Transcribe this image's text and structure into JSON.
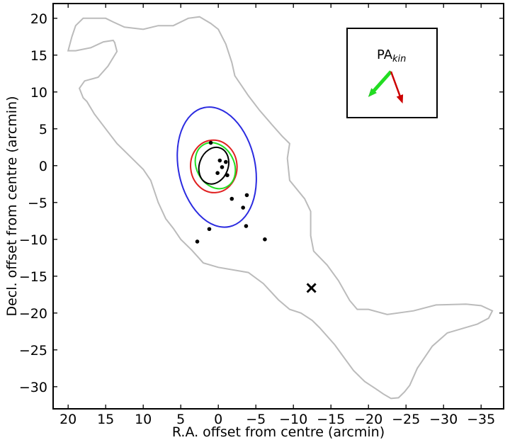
{
  "chart_data": {
    "type": "scatter",
    "xlabel": "R.A. offset from centre (arcmin)",
    "ylabel": "Decl. offset from centre (arcmin)",
    "xlim": [
      22,
      -38
    ],
    "ylim": [
      -33,
      22
    ],
    "xticks": [
      20,
      15,
      10,
      5,
      0,
      -5,
      -10,
      -15,
      -20,
      -25,
      -30,
      -35
    ],
    "yticks": [
      20,
      15,
      10,
      5,
      0,
      -5,
      -10,
      -15,
      -20,
      -25,
      -30
    ],
    "grid": false,
    "colors": {
      "outer_contour": "#bbbbbb",
      "blue_ellipse": "#2b2be0",
      "red_contour": "#e02020",
      "green_contour": "#22dd22",
      "black_contour": "#000000",
      "arrow_black": "#000000",
      "arrow_green": "#22dd22",
      "arrow_red": "#cc0000"
    },
    "points": [
      {
        "x": 1.0,
        "y": 3.1
      },
      {
        "x": -0.2,
        "y": 0.7
      },
      {
        "x": -1.0,
        "y": 0.5
      },
      {
        "x": -0.5,
        "y": -0.2
      },
      {
        "x": 0.1,
        "y": -1.0
      },
      {
        "x": -1.2,
        "y": -1.3
      },
      {
        "x": -1.8,
        "y": -4.5
      },
      {
        "x": -3.8,
        "y": -4.0
      },
      {
        "x": -3.3,
        "y": -5.7
      },
      {
        "x": -3.7,
        "y": -8.2
      },
      {
        "x": 1.2,
        "y": -8.6
      },
      {
        "x": 2.8,
        "y": -10.3
      },
      {
        "x": -6.2,
        "y": -10.0
      }
    ],
    "cross_marker": {
      "x": -12.4,
      "y": -16.6
    },
    "ellipses": [
      {
        "name": "blue",
        "cx": 0.2,
        "cy": -0.2,
        "a": 8.1,
        "b": 5.2,
        "angle_deg": 102
      },
      {
        "name": "red",
        "cx": 0.6,
        "cy": -0.1,
        "a": 3.5,
        "b": 3.15,
        "angle_deg": 95
      },
      {
        "name": "green",
        "cx": 0.4,
        "cy": 0.0,
        "a": 3.2,
        "b": 2.55,
        "angle_deg": 118
      },
      {
        "name": "black",
        "cx": 0.6,
        "cy": 0.0,
        "a": 2.5,
        "b": 1.95,
        "angle_deg": 70
      }
    ],
    "outer_contour": [
      [
        19,
        19
      ],
      [
        18,
        20
      ],
      [
        16,
        20
      ],
      [
        15,
        20
      ],
      [
        14,
        19.5
      ],
      [
        12.5,
        18.8
      ],
      [
        10,
        18.5
      ],
      [
        8,
        19
      ],
      [
        6,
        19
      ],
      [
        4,
        20
      ],
      [
        2.5,
        20.2
      ],
      [
        1,
        19.3
      ],
      [
        0,
        18.5
      ],
      [
        -1,
        16.5
      ],
      [
        -1.8,
        14
      ],
      [
        -2.2,
        12.2
      ],
      [
        -4,
        9.5
      ],
      [
        -5.5,
        7.5
      ],
      [
        -7.2,
        5.5
      ],
      [
        -8.5,
        4
      ],
      [
        -9.5,
        3
      ],
      [
        -9.2,
        1
      ],
      [
        -9.5,
        -2
      ],
      [
        -11.5,
        -4.5
      ],
      [
        -12.3,
        -6.2
      ],
      [
        -12.3,
        -9.5
      ],
      [
        -12.7,
        -11.6
      ],
      [
        -14.5,
        -13.5
      ],
      [
        -16,
        -15.6
      ],
      [
        -17.5,
        -18.3
      ],
      [
        -18.5,
        -19.5
      ],
      [
        -20,
        -19.5
      ],
      [
        -22.5,
        -20.2
      ],
      [
        -26,
        -19.7
      ],
      [
        -29,
        -18.9
      ],
      [
        -33,
        -18.8
      ],
      [
        -35,
        -19
      ],
      [
        -36.5,
        -19.7
      ],
      [
        -36,
        -20.7
      ],
      [
        -34.5,
        -21.5
      ],
      [
        -30.5,
        -22.7
      ],
      [
        -28.5,
        -24.5
      ],
      [
        -27.5,
        -26
      ],
      [
        -26.5,
        -27.5
      ],
      [
        -25.5,
        -29.8
      ],
      [
        -24.8,
        -30.7
      ],
      [
        -24,
        -31.5
      ],
      [
        -23,
        -31.6
      ],
      [
        -22,
        -31
      ],
      [
        -21,
        -30.3
      ],
      [
        -19.5,
        -29.3
      ],
      [
        -18,
        -27.8
      ],
      [
        -16.5,
        -25.7
      ],
      [
        -15.5,
        -24.3
      ],
      [
        -13.5,
        -22
      ],
      [
        -12.5,
        -21
      ],
      [
        -11,
        -20
      ],
      [
        -9.5,
        -19.5
      ],
      [
        -8,
        -18.2
      ],
      [
        -6,
        -16
      ],
      [
        -4,
        -14.5
      ],
      [
        0,
        -13.8
      ],
      [
        2,
        -13.2
      ],
      [
        3.5,
        -11.5
      ],
      [
        5,
        -10
      ],
      [
        6,
        -8.5
      ],
      [
        7,
        -7.2
      ],
      [
        8,
        -5
      ],
      [
        9,
        -2
      ],
      [
        10,
        -0.5
      ],
      [
        12,
        1.5
      ],
      [
        13.5,
        3
      ],
      [
        15,
        5
      ],
      [
        16.5,
        7
      ],
      [
        17.5,
        8.7
      ],
      [
        18,
        9.2
      ],
      [
        18.5,
        10.5
      ],
      [
        17.8,
        11.5
      ],
      [
        16,
        12
      ],
      [
        14.7,
        13.5
      ],
      [
        13.5,
        15.5
      ],
      [
        13.8,
        16.7
      ],
      [
        14,
        17
      ],
      [
        15.3,
        16.8
      ],
      [
        17,
        16
      ],
      [
        19,
        15.6
      ],
      [
        20,
        15.6
      ],
      [
        19.5,
        17.5
      ]
    ],
    "inset": {
      "label_base": "PA",
      "label_sub": "kin",
      "arrows": [
        {
          "name": "black",
          "dx": -0.85,
          "dy": 0.95
        },
        {
          "name": "green",
          "dx": -0.75,
          "dy": 0.84
        },
        {
          "name": "red",
          "dx": 0.33,
          "dy": 0.9
        }
      ]
    }
  }
}
